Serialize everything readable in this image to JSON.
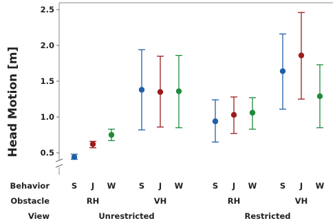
{
  "chart_data": {
    "type": "scatter",
    "subtype": "interval-plot",
    "ylabel": "Head Motion [m]",
    "ylim": [
      0.35,
      2.6
    ],
    "yticks": [
      0.5,
      1.0,
      1.5,
      2.0,
      2.5
    ],
    "ytick_labels": [
      "0.5",
      "1.0",
      "1.5",
      "2.0",
      "2.5"
    ],
    "axis_break": true,
    "grid": false,
    "colors": {
      "S": "#1f5fa8",
      "J": "#9b1c1c",
      "W": "#1e8c3a"
    },
    "row_labels": [
      "Behavior",
      "Obstacle",
      "View"
    ],
    "groups": [
      {
        "view": "Unrestricted",
        "obstacles": [
          {
            "obstacle": "RH",
            "points": [
              {
                "behavior": "S",
                "mean": 0.44,
                "low": 0.41,
                "high": 0.48
              },
              {
                "behavior": "J",
                "mean": 0.62,
                "low": 0.57,
                "high": 0.66
              },
              {
                "behavior": "W",
                "mean": 0.75,
                "low": 0.67,
                "high": 0.83
              }
            ]
          },
          {
            "obstacle": "VH",
            "points": [
              {
                "behavior": "S",
                "mean": 1.38,
                "low": 0.82,
                "high": 1.94
              },
              {
                "behavior": "J",
                "mean": 1.35,
                "low": 0.86,
                "high": 1.85
              },
              {
                "behavior": "W",
                "mean": 1.36,
                "low": 0.85,
                "high": 1.86
              }
            ]
          }
        ]
      },
      {
        "view": "Restricted",
        "obstacles": [
          {
            "obstacle": "RH",
            "points": [
              {
                "behavior": "S",
                "mean": 0.94,
                "low": 0.65,
                "high": 1.24
              },
              {
                "behavior": "J",
                "mean": 1.03,
                "low": 0.77,
                "high": 1.28
              },
              {
                "behavior": "W",
                "mean": 1.06,
                "low": 0.83,
                "high": 1.27
              }
            ]
          },
          {
            "obstacle": "VH",
            "points": [
              {
                "behavior": "S",
                "mean": 1.64,
                "low": 1.11,
                "high": 2.16
              },
              {
                "behavior": "J",
                "mean": 1.86,
                "low": 1.25,
                "high": 2.46
              },
              {
                "behavior": "W",
                "mean": 1.29,
                "low": 0.85,
                "high": 1.73
              }
            ]
          }
        ]
      }
    ]
  }
}
